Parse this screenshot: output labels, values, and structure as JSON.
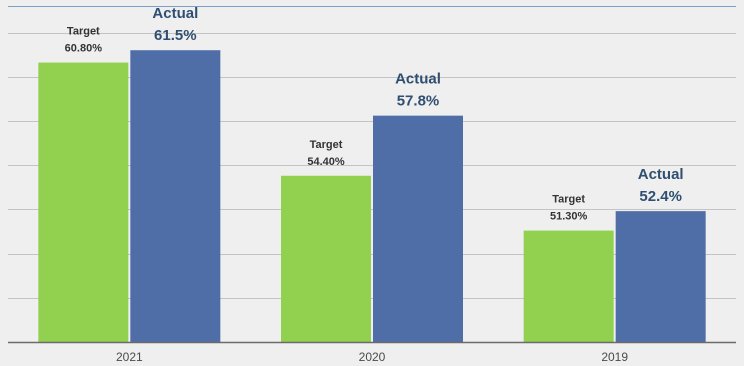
{
  "colors": {
    "background": "#efefef",
    "grid": "#c4c4c4",
    "axis": "#6b6b6b",
    "target_bar": "#92d050",
    "actual_bar": "#4f6ea8",
    "target_label": "#333333",
    "actual_label": "#2f4f72",
    "frame": "#7aa0c8"
  },
  "chart_data": {
    "type": "bar",
    "categories": [
      "2021",
      "2020",
      "2019"
    ],
    "series": [
      {
        "name": "Target",
        "values": [
          60.8,
          54.4,
          51.3
        ],
        "labels": [
          "60.80%",
          "54.40%",
          "51.30%"
        ],
        "label_title": "Target"
      },
      {
        "name": "Actual",
        "values": [
          61.5,
          57.8,
          52.4
        ],
        "labels": [
          "61.5%",
          "57.8%",
          "52.4%"
        ],
        "label_title": "Actual"
      }
    ],
    "ylim": [
      45,
      64
    ],
    "grid": true,
    "legend": "none"
  }
}
